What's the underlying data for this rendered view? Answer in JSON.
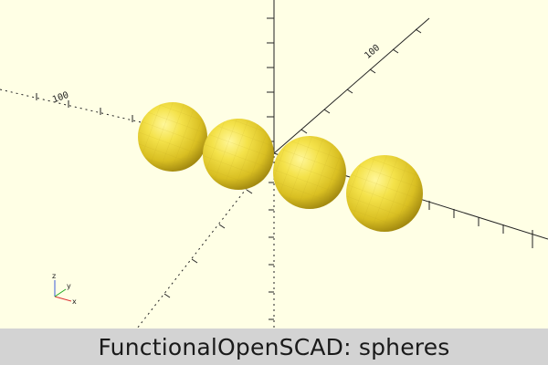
{
  "caption": {
    "text": "FunctionalOpenSCAD: spheres"
  },
  "scene": {
    "background_color": "#ffffe5",
    "sphere_color": "#f0dc3c",
    "sphere_count": 4
  },
  "axes": {
    "x_label": "100",
    "y_label": "100",
    "mini_axis_labels": [
      "x",
      "y",
      "z"
    ]
  }
}
